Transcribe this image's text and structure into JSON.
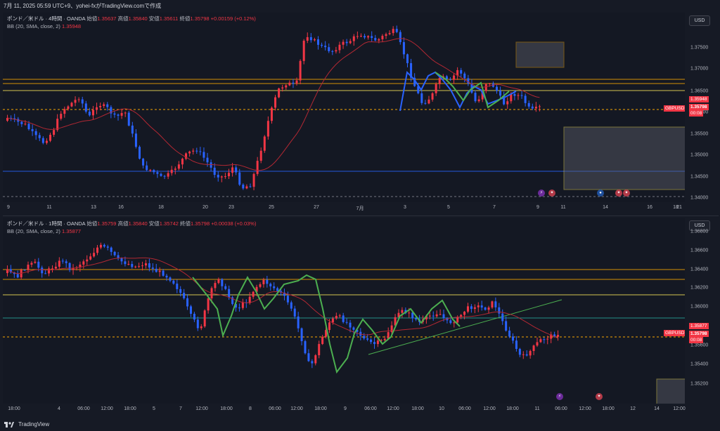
{
  "header": {
    "text": "7月 11, 2025 05:59 UTC+9、yohei-fxがTradingView.comで作成"
  },
  "footer": {
    "brand": "TradingView"
  },
  "colors": {
    "bull": "#f23645",
    "bear": "#2962ff",
    "bb": "#b22833",
    "orange": "#f7a600",
    "yellow": "#f7e35a",
    "blue": "#2962ff",
    "teal": "#26a69a",
    "green": "#4caf50",
    "zigblue": "#2962ff"
  },
  "pane1": {
    "legend": {
      "symbol": "ポンド／米ドル · 4時間 · OANDA",
      "open_label": "始値",
      "open": "1.35637",
      "high_label": "高値",
      "high": "1.35840",
      "low_label": "安値",
      "low": "1.35611",
      "close_label": "終値",
      "close": "1.35798",
      "change": "+0.00159 (+0.12%)",
      "bb_label": "BB (20, SMA, close, 2)",
      "bb_value": "1.35948"
    },
    "currency": "USD",
    "yaxis_labels": [
      "1.37500",
      "1.37000",
      "1.36500",
      "1.36000",
      "1.35500",
      "1.35000",
      "1.34500",
      "1.34000"
    ],
    "xaxis_labels": [
      "9",
      "11",
      "13",
      "16",
      "18",
      "20",
      "23",
      "25",
      "27",
      "7月",
      "3",
      "5",
      "7",
      "9",
      "11",
      "14",
      "16",
      "18",
      "21"
    ],
    "tags": {
      "bb": "1.35948",
      "symbol": "GBPUSD",
      "price": "1.35798",
      "countdown": "00:08"
    }
  },
  "pane2": {
    "legend": {
      "symbol": "ポンド／米ドル · 1時間 · OANDA",
      "open_label": "始値",
      "open": "1.35759",
      "high_label": "高値",
      "high": "1.35840",
      "low_label": "安値",
      "low": "1.35742",
      "close_label": "終値",
      "close": "1.35798",
      "change": "+0.00038 (+0.03%)",
      "bb_label": "BB (20, SMA, close, 2)",
      "bb_value": "1.35877"
    },
    "currency": "USD",
    "yaxis_labels": [
      "1.36800",
      "1.36600",
      "1.36400",
      "1.36200",
      "1.36000",
      "1.35800",
      "1.35600",
      "1.35400",
      "1.35200"
    ],
    "xaxis_labels": [
      "18:00",
      "4",
      "06:00",
      "12:00",
      "18:00",
      "5",
      "7",
      "12:00",
      "18:00",
      "8",
      "06:00",
      "12:00",
      "18:00",
      "9",
      "06:00",
      "12:00",
      "18:00",
      "10",
      "06:00",
      "12:00",
      "18:00",
      "11",
      "06:00",
      "12:00",
      "18:00",
      "12",
      "14",
      "12:00"
    ],
    "tags": {
      "bb": "1.35877",
      "symbol": "GBPUSD",
      "price": "1.35798",
      "countdown": "00:08"
    }
  }
}
